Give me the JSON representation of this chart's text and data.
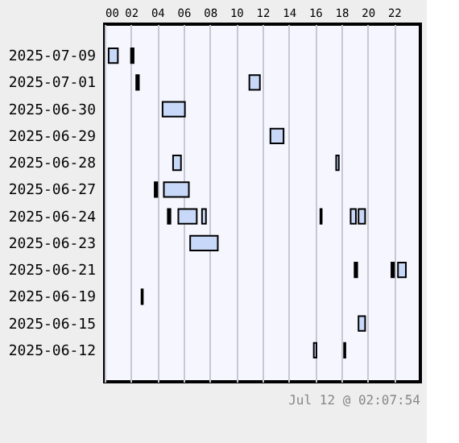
{
  "chart_data": {
    "type": "bar",
    "orientation": "horizontal",
    "categories": [
      "2025-07-09",
      "2025-07-01",
      "2025-06-30",
      "2025-06-29",
      "2025-06-28",
      "2025-06-27",
      "2025-06-24",
      "2025-06-23",
      "2025-06-21",
      "2025-06-19",
      "2025-06-15",
      "2025-06-12"
    ],
    "xlim": [
      0,
      24
    ],
    "xticks": [
      {
        "value": 0,
        "label": "00"
      },
      {
        "value": 2,
        "label": "02"
      },
      {
        "value": 4,
        "label": "04"
      },
      {
        "value": 6,
        "label": "06"
      },
      {
        "value": 8,
        "label": "08"
      },
      {
        "value": 10,
        "label": "10"
      },
      {
        "value": 12,
        "label": "12"
      },
      {
        "value": 14,
        "label": "14"
      },
      {
        "value": 16,
        "label": "16"
      },
      {
        "value": 18,
        "label": "18"
      },
      {
        "value": 20,
        "label": "20"
      },
      {
        "value": 22,
        "label": "22"
      }
    ],
    "grid": "x",
    "series": [
      {
        "base": [
          0.3,
          2.4,
          4.4,
          12.6,
          5.2,
          3.8,
          4.8,
          6.5,
          19.0,
          2.8,
          19.3,
          15.9
        ],
        "values": [
          0.7,
          0.2,
          1.7,
          1.0,
          0.6,
          0.2,
          0.2,
          2.1,
          0.2,
          0.1,
          0.5,
          0.2
        ],
        "colors": [
          "#c8d8f8",
          "#000000",
          "#c8d8f8",
          "#c8d8f8",
          "#c8d8f8",
          "#000000",
          "#000000",
          "#c8d8f8",
          "#000000",
          "#000000",
          "#c8d8f8",
          "#c8d8f8"
        ]
      },
      {
        "base": [
          2.0,
          11.0,
          null,
          null,
          17.6,
          4.5,
          5.6,
          null,
          21.8,
          null,
          null,
          18.2
        ],
        "values": [
          0.2,
          0.8,
          null,
          null,
          0.2,
          1.9,
          1.4,
          null,
          0.2,
          null,
          null,
          0.1
        ],
        "colors": [
          "#000000",
          "#c8d8f8",
          null,
          null,
          "#c8d8f8",
          "#c8d8f8",
          "#c8d8f8",
          null,
          "#000000",
          null,
          null,
          "#000000"
        ]
      },
      {
        "base": [
          null,
          null,
          null,
          null,
          null,
          null,
          7.4,
          null,
          22.3,
          null,
          null,
          null
        ],
        "values": [
          null,
          null,
          null,
          null,
          null,
          null,
          0.3,
          null,
          0.6,
          null,
          null,
          null
        ],
        "colors": [
          null,
          null,
          null,
          null,
          null,
          null,
          "#c8d8f8",
          null,
          "#c8d8f8",
          null,
          null,
          null
        ]
      },
      {
        "base": [
          null,
          null,
          null,
          null,
          null,
          null,
          16.4,
          null,
          null,
          null,
          null,
          null
        ],
        "values": [
          null,
          null,
          null,
          null,
          null,
          null,
          0.1,
          null,
          null,
          null,
          null,
          null
        ],
        "colors": [
          null,
          null,
          null,
          null,
          null,
          null,
          "#000000",
          null,
          null,
          null,
          null,
          null
        ]
      },
      {
        "base": [
          null,
          null,
          null,
          null,
          null,
          null,
          18.7,
          null,
          null,
          null,
          null,
          null
        ],
        "values": [
          null,
          null,
          null,
          null,
          null,
          null,
          0.4,
          null,
          null,
          null,
          null,
          null
        ],
        "colors": [
          null,
          null,
          null,
          null,
          null,
          null,
          "#c8d8f8",
          null,
          null,
          null,
          null,
          null
        ]
      },
      {
        "base": [
          null,
          null,
          null,
          null,
          null,
          null,
          19.3,
          null,
          null,
          null,
          null,
          null
        ],
        "values": [
          null,
          null,
          null,
          null,
          null,
          null,
          0.5,
          null,
          null,
          null,
          null,
          null
        ],
        "colors": [
          null,
          null,
          null,
          null,
          null,
          null,
          "#c8d8f8",
          null,
          null,
          null,
          null,
          null
        ]
      }
    ],
    "annotations": [
      "Jul 12 @ 02:07:54"
    ]
  }
}
